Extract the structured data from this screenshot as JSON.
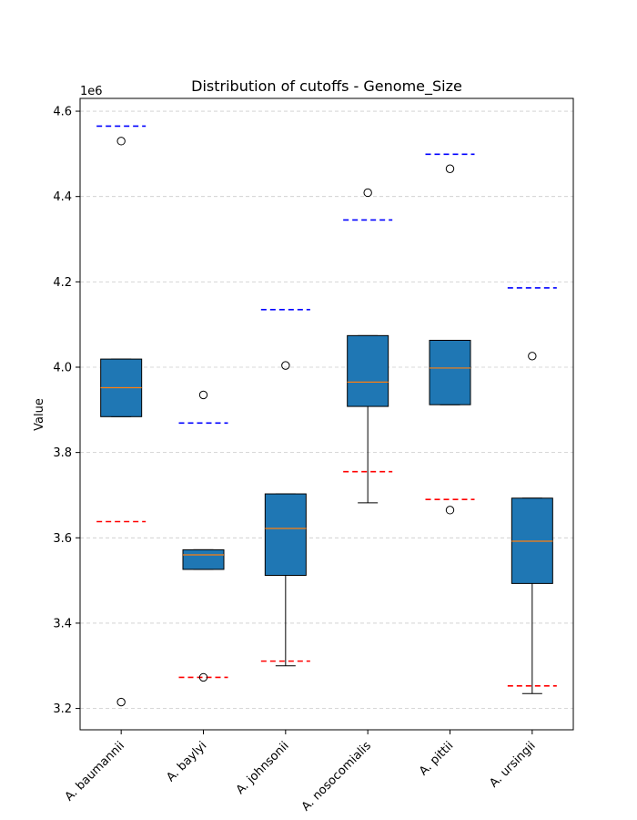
{
  "chart_data": {
    "type": "box",
    "title": "Distribution of cutoffs - Genome_Size",
    "xlabel": "",
    "ylabel": "Value",
    "y_offset_label": "1e6",
    "ylim": [
      3150000,
      4630000
    ],
    "yticks": [
      3200000,
      3400000,
      3600000,
      3800000,
      4000000,
      4200000,
      4400000,
      4600000
    ],
    "ytick_labels": [
      "3.2",
      "3.4",
      "3.6",
      "3.8",
      "4.0",
      "4.2",
      "4.4",
      "4.6"
    ],
    "grid": "y-dashed",
    "categories": [
      "A. baumannii",
      "A. baylyi",
      "A. johnsonii",
      "A. nosocomialis",
      "A. pittii",
      "A. ursingii"
    ],
    "boxes": [
      {
        "q1": 3884000,
        "median": 3952000,
        "q3": 4019000,
        "whisker_low": 3884000,
        "whisker_high": 4019000,
        "outliers": [
          4530000,
          3215000
        ]
      },
      {
        "q1": 3526000,
        "median": 3560000,
        "q3": 3572000,
        "whisker_low": 3526000,
        "whisker_high": 3572000,
        "outliers": [
          3935000,
          3273000
        ]
      },
      {
        "q1": 3512000,
        "median": 3622000,
        "q3": 3703000,
        "whisker_low": 3300000,
        "whisker_high": 3703000,
        "outliers": [
          4004000
        ]
      },
      {
        "q1": 3908000,
        "median": 3965000,
        "q3": 4074000,
        "whisker_low": 3682000,
        "whisker_high": 4074000,
        "outliers": [
          4409000
        ]
      },
      {
        "q1": 3912000,
        "median": 3998000,
        "q3": 4063000,
        "whisker_low": 3912000,
        "whisker_high": 4063000,
        "outliers": [
          4465000,
          3665000
        ]
      },
      {
        "q1": 3493000,
        "median": 3592000,
        "q3": 3693000,
        "whisker_low": 3235000,
        "whisker_high": 3693000,
        "outliers": [
          4026000
        ]
      }
    ],
    "upper_cutoffs": [
      4565000,
      3869000,
      4135000,
      4345000,
      4499000,
      4186000
    ],
    "lower_cutoffs": [
      3638000,
      3273000,
      3311000,
      3755000,
      3690000,
      3253000
    ],
    "colors": {
      "box_fill": "#1f77b4",
      "median": "#ff7f0e",
      "upper_cutoff": "#0000ff",
      "lower_cutoff": "#ff0000",
      "grid": "#cccccc"
    }
  }
}
